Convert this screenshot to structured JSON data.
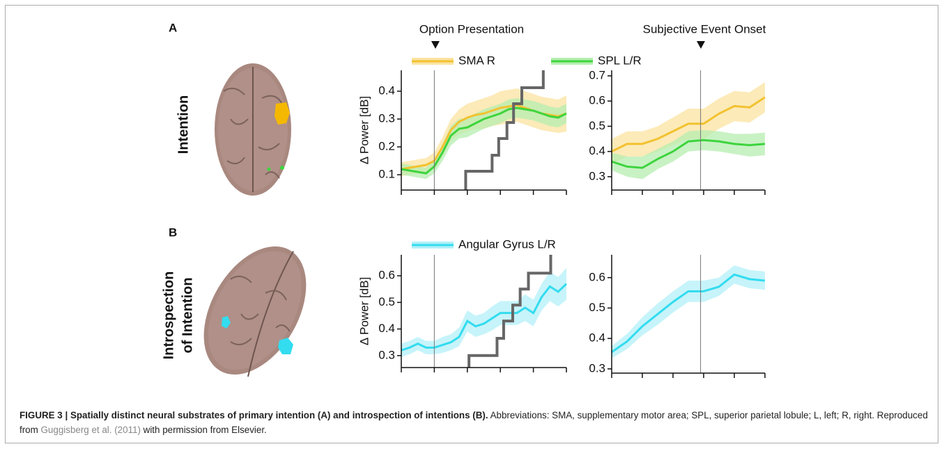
{
  "figure": {
    "panels": [
      {
        "label": "A",
        "row_label": "Intention"
      },
      {
        "label": "B",
        "row_label_lines": [
          "Introspection",
          "of Intention"
        ]
      }
    ],
    "event_labels": [
      "Option Presentation",
      "Subjective Event Onset"
    ]
  },
  "chart_data": [
    {
      "type": "line",
      "ylabel": "Δ Power [dB]",
      "x": [
        0,
        1,
        2,
        3,
        4,
        5,
        6,
        7,
        8,
        9,
        10,
        11,
        12,
        13,
        14,
        15,
        16,
        17,
        18,
        19,
        20
      ],
      "xlim": [
        0,
        20
      ],
      "xticks": [
        0,
        4,
        8,
        12,
        16,
        20
      ],
      "ylim": [
        0.045,
        0.475
      ],
      "yticks": [
        0.1,
        0.2,
        0.3,
        0.4
      ],
      "onset_x": 4,
      "legend": true,
      "series": [
        {
          "name": "SMA R",
          "color": "#f2c230",
          "band_color": "#fbe3a0",
          "values": [
            0.12,
            0.125,
            0.13,
            0.135,
            0.15,
            0.2,
            0.26,
            0.29,
            0.305,
            0.315,
            0.32,
            0.33,
            0.34,
            0.345,
            0.35,
            0.34,
            0.33,
            0.32,
            0.315,
            0.31,
            0.32
          ],
          "errors": [
            0.025,
            0.025,
            0.025,
            0.025,
            0.03,
            0.035,
            0.04,
            0.045,
            0.05,
            0.05,
            0.055,
            0.055,
            0.06,
            0.06,
            0.06,
            0.06,
            0.06,
            0.06,
            0.06,
            0.06,
            0.065
          ]
        },
        {
          "name": "SPL L/R",
          "color": "#3ed43e",
          "band_color": "#b6eeb0",
          "values": [
            0.12,
            0.115,
            0.11,
            0.105,
            0.13,
            0.18,
            0.24,
            0.265,
            0.27,
            0.285,
            0.3,
            0.31,
            0.32,
            0.335,
            0.34,
            0.335,
            0.33,
            0.32,
            0.31,
            0.305,
            0.32
          ],
          "errors": [
            0.02,
            0.02,
            0.02,
            0.02,
            0.025,
            0.03,
            0.035,
            0.035,
            0.035,
            0.035,
            0.035,
            0.035,
            0.035,
            0.035,
            0.035,
            0.035,
            0.035,
            0.035,
            0.035,
            0.035,
            0.035
          ]
        }
      ],
      "steps": {
        "color": "#666666",
        "x": [
          7.8,
          7.8,
          11,
          11,
          11.8,
          11.8,
          12.8,
          12.8,
          13.6,
          13.6,
          14.6,
          14.6,
          17.2,
          17.2
        ],
        "values": [
          0.045,
          0.1125,
          0.1125,
          0.17,
          0.17,
          0.23,
          0.23,
          0.2875,
          0.2875,
          0.355,
          0.355,
          0.4125,
          0.4125,
          0.475
        ]
      }
    },
    {
      "type": "line",
      "x": [
        0,
        2,
        4,
        6,
        8,
        10,
        12,
        14,
        16,
        18,
        20
      ],
      "xlim": [
        0,
        20
      ],
      "xticks": [
        0,
        4,
        8,
        12,
        16,
        20
      ],
      "ylim": [
        0.247,
        0.722
      ],
      "yticks": [
        0.3,
        0.4,
        0.5,
        0.6,
        0.7
      ],
      "onset_x": 11.6,
      "legend": false,
      "series": [
        {
          "color": "#f2c230",
          "band_color": "#fbe3a0",
          "values": [
            0.4,
            0.43,
            0.43,
            0.45,
            0.48,
            0.51,
            0.51,
            0.55,
            0.58,
            0.575,
            0.615
          ],
          "errors": [
            0.05,
            0.05,
            0.05,
            0.05,
            0.055,
            0.06,
            0.06,
            0.06,
            0.06,
            0.06,
            0.06
          ]
        },
        {
          "color": "#3ed43e",
          "band_color": "#b6eeb0",
          "values": [
            0.36,
            0.34,
            0.335,
            0.37,
            0.4,
            0.44,
            0.445,
            0.44,
            0.43,
            0.425,
            0.43
          ],
          "errors": [
            0.035,
            0.04,
            0.045,
            0.04,
            0.04,
            0.04,
            0.04,
            0.04,
            0.04,
            0.045,
            0.045
          ]
        }
      ]
    },
    {
      "type": "line",
      "ylabel": "Δ Power [dB]",
      "x": [
        0,
        1,
        2,
        3,
        4,
        5,
        6,
        7,
        8,
        9,
        10,
        11,
        12,
        13,
        14,
        15,
        16,
        17,
        18,
        19,
        20
      ],
      "xlim": [
        0,
        20
      ],
      "xticks": [
        0,
        4,
        8,
        12,
        16,
        20
      ],
      "ylim": [
        0.255,
        0.679
      ],
      "yticks": [
        0.3,
        0.4,
        0.5,
        0.6
      ],
      "onset_x": 4,
      "legend": true,
      "series": [
        {
          "name": "Angular Gyrus L/R",
          "color": "#33dcef",
          "band_color": "#b3f0f8",
          "values": [
            0.32,
            0.33,
            0.345,
            0.33,
            0.33,
            0.34,
            0.35,
            0.37,
            0.43,
            0.41,
            0.42,
            0.44,
            0.46,
            0.46,
            0.46,
            0.48,
            0.46,
            0.52,
            0.56,
            0.54,
            0.57
          ],
          "errors": [
            0.025,
            0.025,
            0.025,
            0.025,
            0.025,
            0.03,
            0.03,
            0.035,
            0.04,
            0.04,
            0.04,
            0.045,
            0.045,
            0.045,
            0.045,
            0.05,
            0.05,
            0.05,
            0.055,
            0.055,
            0.06
          ]
        }
      ],
      "steps": {
        "color": "#666666",
        "x": [
          8.2,
          8.2,
          11.6,
          11.6,
          12.4,
          12.4,
          13.5,
          13.5,
          14.4,
          14.4,
          15.4,
          15.4,
          18.1,
          18.1
        ],
        "values": [
          0.255,
          0.3,
          0.3,
          0.365,
          0.365,
          0.43,
          0.43,
          0.49,
          0.49,
          0.55,
          0.55,
          0.61,
          0.61,
          0.679
        ]
      }
    },
    {
      "type": "line",
      "x": [
        0,
        2,
        4,
        6,
        8,
        10,
        12,
        14,
        16,
        18,
        20
      ],
      "xlim": [
        0,
        20
      ],
      "xticks": [
        0,
        4,
        8,
        12,
        16,
        20
      ],
      "ylim": [
        0.286,
        0.675
      ],
      "yticks": [
        0.3,
        0.4,
        0.5,
        0.6
      ],
      "onset_x": 11.6,
      "legend": false,
      "series": [
        {
          "color": "#33dcef",
          "band_color": "#b3f0f8",
          "values": [
            0.355,
            0.39,
            0.44,
            0.48,
            0.52,
            0.555,
            0.555,
            0.57,
            0.61,
            0.595,
            0.59
          ],
          "errors": [
            0.02,
            0.025,
            0.03,
            0.035,
            0.035,
            0.035,
            0.035,
            0.03,
            0.03,
            0.03,
            0.03
          ]
        }
      ]
    }
  ],
  "caption": {
    "bold": "FIGURE 3 | Spatially distinct neural substrates of primary intention (A) and introspection of intentions (B).",
    "text_1": " Abbreviations: SMA, supplementary motor area; SPL, superior parietal lobule; L, left; R, right. Reproduced from ",
    "link": "Guggisberg et al. (2011)",
    "text_2": " with permission from Elsevier."
  }
}
